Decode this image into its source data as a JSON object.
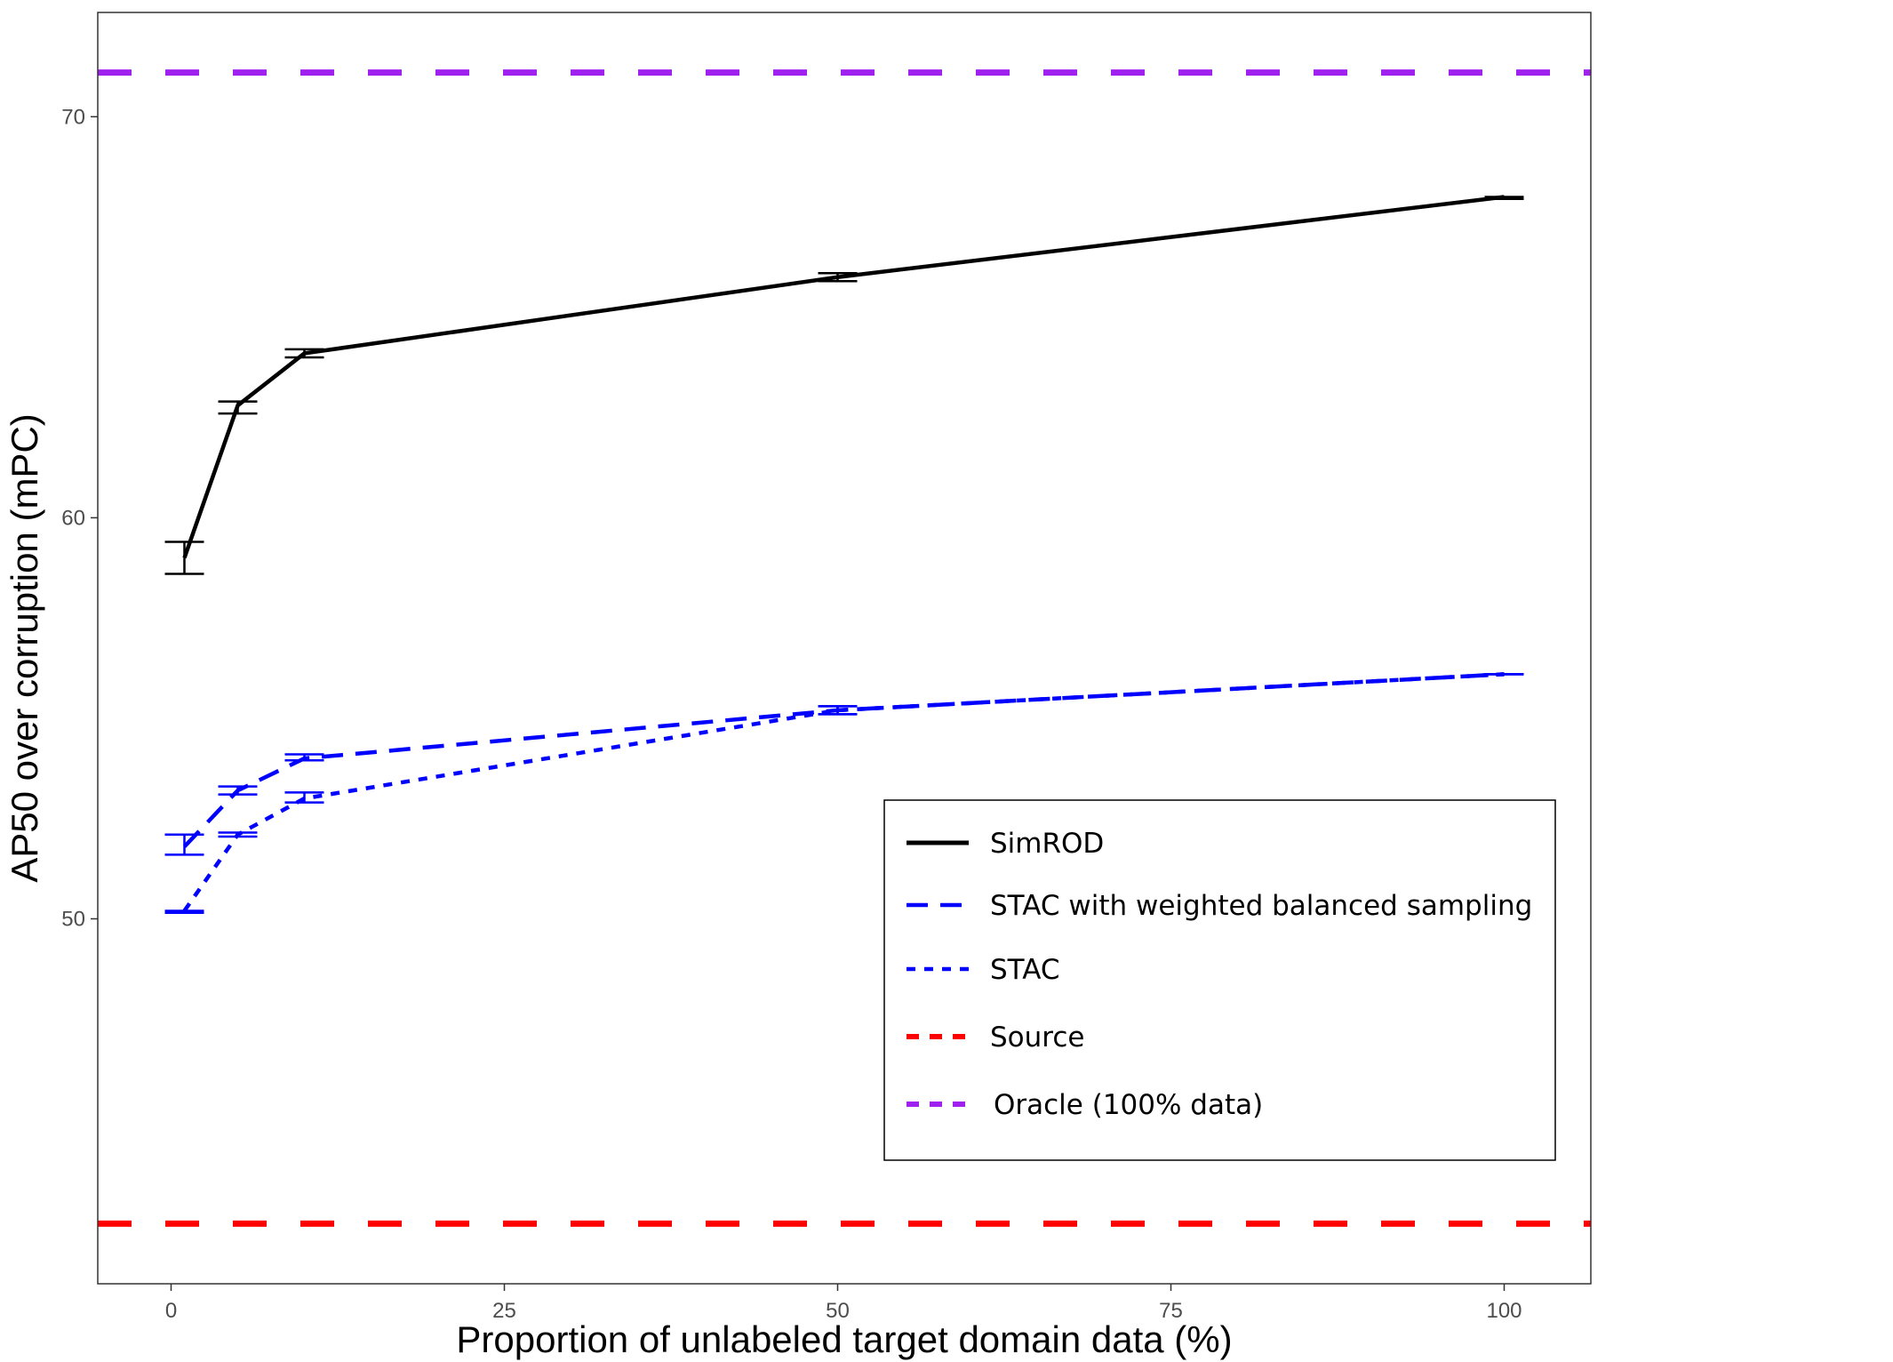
{
  "chart_data": {
    "type": "line",
    "title": "",
    "xlabel": "Proportion of unlabeled target domain data (%)",
    "ylabel": "AP50 over corruption (mPC)",
    "xlim": [
      -5.5,
      106.5
    ],
    "ylim": [
      40.9,
      72.6
    ],
    "x_ticks": [
      0,
      25,
      50,
      75,
      100
    ],
    "y_ticks": [
      50,
      60,
      70
    ],
    "grid": false,
    "legend_position": "bottom-right",
    "series": [
      {
        "name": "SimROD",
        "color": "#000000",
        "style": "solid",
        "points": [
          {
            "x": 1,
            "y": 59.0,
            "err_lo": 58.6,
            "err_hi": 59.4
          },
          {
            "x": 5,
            "y": 62.8,
            "err_lo": 62.6,
            "err_hi": 62.9
          },
          {
            "x": 10,
            "y": 64.1,
            "err_lo": 64.0,
            "err_hi": 64.2
          },
          {
            "x": 50,
            "y": 66.0,
            "err_lo": 65.9,
            "err_hi": 66.1
          },
          {
            "x": 100,
            "y": 68.0,
            "err_lo": 67.95,
            "err_hi": 68.0
          }
        ]
      },
      {
        "name": "STAC with weighted balanced sampling",
        "color": "#0000ff",
        "style": "longdash",
        "points": [
          {
            "x": 1,
            "y": 51.8,
            "err_lo": 51.6,
            "err_hi": 52.1
          },
          {
            "x": 5,
            "y": 53.2,
            "err_lo": 53.1,
            "err_hi": 53.3
          },
          {
            "x": 10,
            "y": 54.0,
            "err_lo": 53.95,
            "err_hi": 54.1
          },
          {
            "x": 50,
            "y": 55.2,
            "err_lo": 55.1,
            "err_hi": 55.3
          },
          {
            "x": 100,
            "y": 56.1,
            "err_lo": 56.1,
            "err_hi": 56.1
          }
        ]
      },
      {
        "name": "STAC",
        "color": "#0000ff",
        "style": "dotted",
        "points": [
          {
            "x": 1,
            "y": 50.2,
            "err_lo": 50.15,
            "err_hi": 50.2
          },
          {
            "x": 5,
            "y": 52.1,
            "err_lo": 52.05,
            "err_hi": 52.15
          },
          {
            "x": 10,
            "y": 53.0,
            "err_lo": 52.9,
            "err_hi": 53.15
          },
          {
            "x": 50,
            "y": 55.2,
            "err_lo": 55.1,
            "err_hi": 55.3
          },
          {
            "x": 100,
            "y": 56.1,
            "err_lo": 56.1,
            "err_hi": 56.1
          }
        ]
      }
    ],
    "reference_lines": [
      {
        "name": "Source",
        "y": 42.4,
        "color": "#ff0000"
      },
      {
        "name": "Oracle (100% data)",
        "y": 71.1,
        "color": "#a020f0"
      }
    ],
    "legend": [
      {
        "label": "SimROD",
        "color": "#000000",
        "style": "solid"
      },
      {
        "label": "STAC with weighted balanced sampling",
        "color": "#0000ff",
        "style": "longdash"
      },
      {
        "label": "STAC",
        "color": "#0000ff",
        "style": "dotted"
      },
      {
        "label": "Source",
        "color": "#ff0000",
        "style": "dashed"
      },
      {
        "label": "Oracle (100% data)",
        "color": "#a020f0",
        "style": "dashed"
      }
    ]
  }
}
